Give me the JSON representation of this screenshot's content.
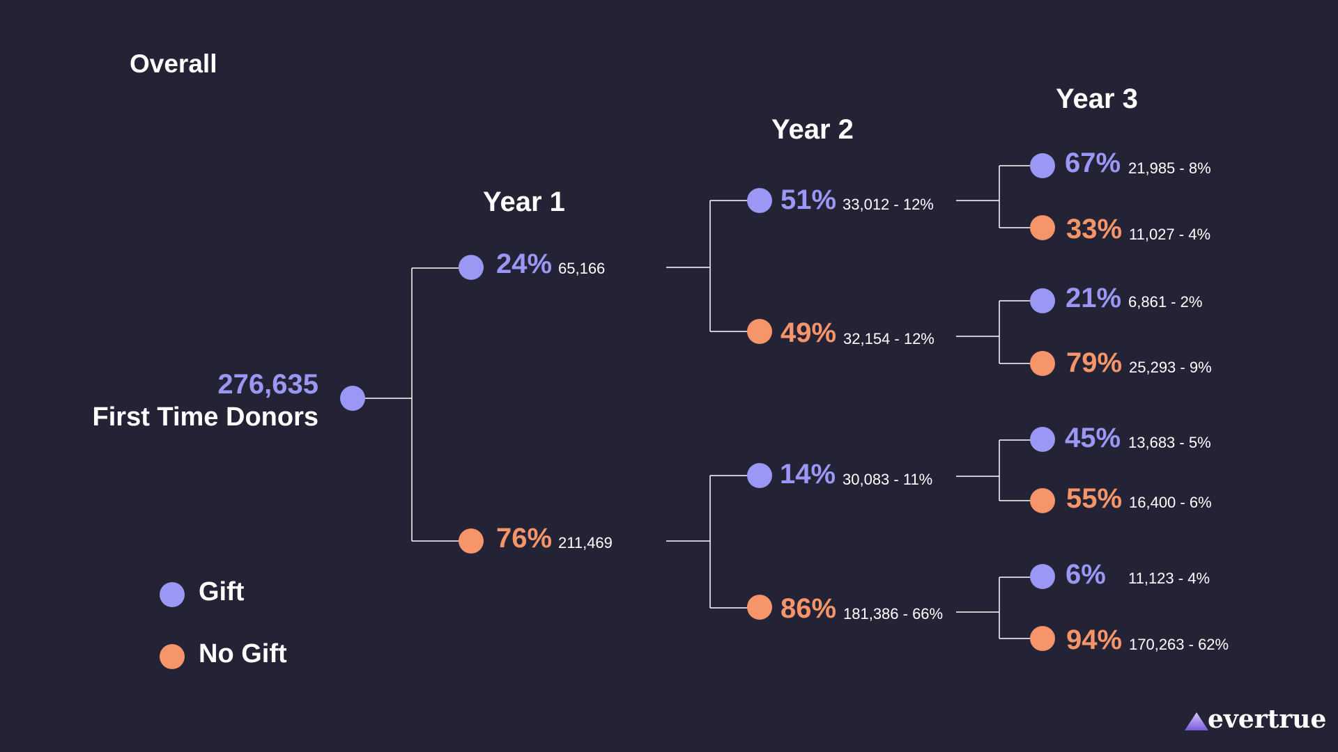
{
  "title": "Overall",
  "years": {
    "year1": "Year 1",
    "year2": "Year 2",
    "year3": "Year 3"
  },
  "root": {
    "count": "276,635",
    "label": "First Time Donors"
  },
  "colors": {
    "gift": "#9b97f4",
    "no_gift": "#f7956a",
    "background": "#242336"
  },
  "tree": {
    "y1_gift": {
      "pct": "24%",
      "detail": "65,166"
    },
    "y1_nogift": {
      "pct": "76%",
      "detail": "211,469"
    },
    "y2_gg": {
      "pct": "51%",
      "detail": "33,012 - 12%"
    },
    "y2_gn": {
      "pct": "49%",
      "detail": "32,154 - 12%"
    },
    "y2_ng": {
      "pct": "14%",
      "detail": "30,083 - 11%"
    },
    "y2_nn": {
      "pct": "86%",
      "detail": "181,386 - 66%"
    },
    "y3_ggg": {
      "pct": "67%",
      "detail": "21,985 - 8%"
    },
    "y3_ggn": {
      "pct": "33%",
      "detail": "11,027 - 4%"
    },
    "y3_gng": {
      "pct": "21%",
      "detail": "6,861 - 2%"
    },
    "y3_gnn": {
      "pct": "79%",
      "detail": "25,293 - 9%"
    },
    "y3_ngg": {
      "pct": "45%",
      "detail": "13,683 - 5%"
    },
    "y3_ngn": {
      "pct": "55%",
      "detail": "16,400 - 6%"
    },
    "y3_nng": {
      "pct": "6%",
      "detail": "11,123 - 4%"
    },
    "y3_nnn": {
      "pct": "94%",
      "detail": "170,263 - 62%"
    }
  },
  "legend": {
    "gift": "Gift",
    "no_gift": "No Gift"
  },
  "logo": {
    "text": "evertrue",
    "icon": "triangle-logo-icon"
  }
}
